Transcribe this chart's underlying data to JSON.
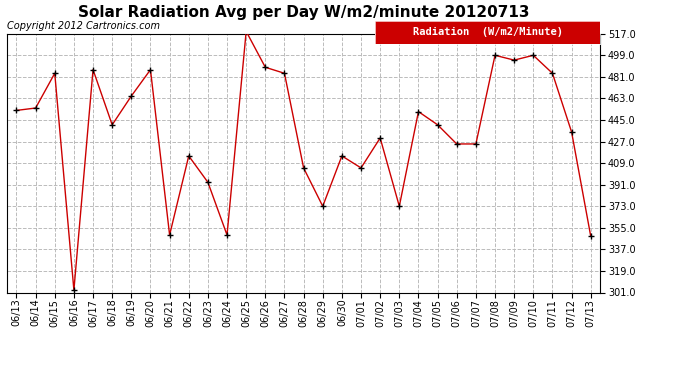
{
  "title": "Solar Radiation Avg per Day W/m2/minute 20120713",
  "copyright": "Copyright 2012 Cartronics.com",
  "legend_label": "Radiation  (W/m2/Minute)",
  "dates": [
    "06/13",
    "06/14",
    "06/15",
    "06/16",
    "06/17",
    "06/18",
    "06/19",
    "06/20",
    "06/21",
    "06/22",
    "06/23",
    "06/24",
    "06/25",
    "06/26",
    "06/27",
    "06/28",
    "06/29",
    "06/30",
    "07/01",
    "07/02",
    "07/03",
    "07/04",
    "07/05",
    "07/06",
    "07/07",
    "07/08",
    "07/09",
    "07/10",
    "07/11",
    "07/12",
    "07/13"
  ],
  "values": [
    453,
    455,
    484,
    303,
    487,
    441,
    465,
    487,
    349,
    415,
    393,
    349,
    519,
    489,
    484,
    405,
    373,
    415,
    405,
    430,
    373,
    452,
    441,
    425,
    425,
    499,
    495,
    499,
    484,
    435,
    348
  ],
  "line_color": "#cc0000",
  "marker_color": "#000000",
  "legend_bg": "#cc0000",
  "legend_text_color": "#ffffff",
  "background_color": "#ffffff",
  "grid_color": "#bbbbbb",
  "ylim_min": 301.0,
  "ylim_max": 517.0,
  "yticks": [
    301.0,
    319.0,
    337.0,
    355.0,
    373.0,
    391.0,
    409.0,
    427.0,
    445.0,
    463.0,
    481.0,
    499.0,
    517.0
  ],
  "title_fontsize": 11,
  "copyright_fontsize": 7,
  "legend_fontsize": 7.5,
  "tick_fontsize": 7,
  "border_color": "#000000"
}
